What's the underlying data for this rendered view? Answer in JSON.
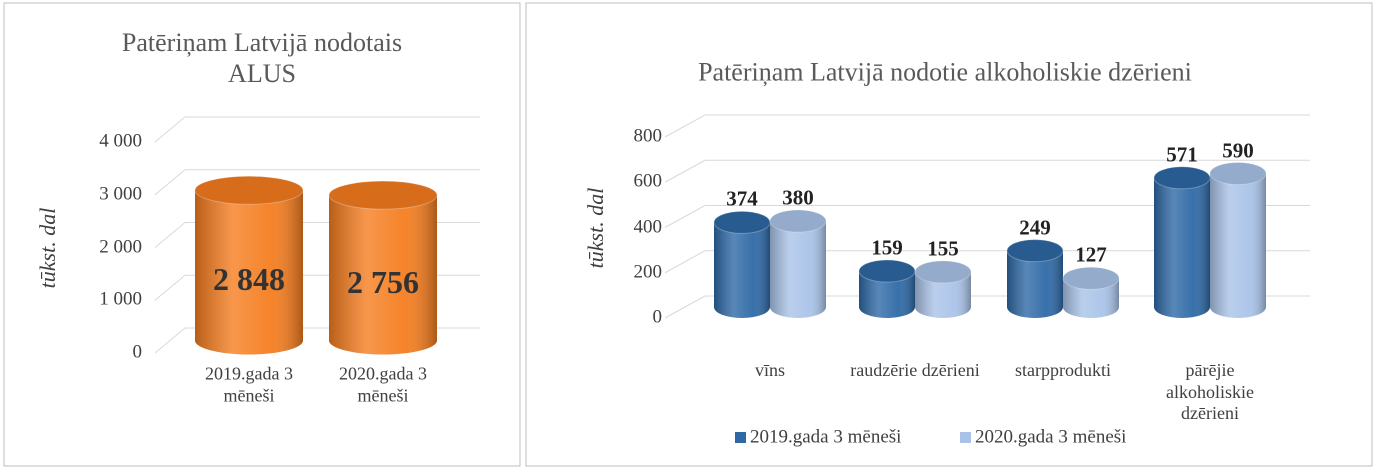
{
  "chart_data": [
    {
      "type": "cylinder-bar",
      "title": "Patēriņam Latvijā nodotais ALUS",
      "y_label": "tūkst. dal",
      "categories": [
        "2019.gada 3 mēneši",
        "2020.gada 3 mēneši"
      ],
      "values": [
        2848,
        2756
      ],
      "value_labels": [
        "2 848",
        "2 756"
      ],
      "color": "#f57d1f",
      "ylim": [
        0,
        4000
      ],
      "yticks": [
        0,
        {
          "value": 1000,
          "label": "1 000"
        },
        {
          "value": 2000,
          "label": "2 000"
        },
        {
          "value": 3000,
          "label": "3 000"
        },
        {
          "value": 4000,
          "label": "4 000"
        }
      ],
      "grid": true
    },
    {
      "type": "cylinder-bar",
      "title": "Patēriņam Latvijā nodotie alkoholiskie dzērieni",
      "y_label": "tūkst. dal",
      "categories": [
        "vīns",
        "raudzērie dzērieni",
        "starpprodukti",
        "pārējie alkoholiskie dzērieni"
      ],
      "series": [
        {
          "name": "2019.gada 3 mēneši",
          "color": "#2e69a6",
          "values": [
            374,
            159,
            249,
            571
          ]
        },
        {
          "name": "2020.gada 3 mēneši",
          "color": "#a9c3e8",
          "values": [
            380,
            155,
            127,
            590
          ]
        }
      ],
      "ylim": [
        0,
        800
      ],
      "yticks": [
        0,
        200,
        400,
        600,
        800
      ],
      "grid": true,
      "legend": "bottom"
    }
  ]
}
